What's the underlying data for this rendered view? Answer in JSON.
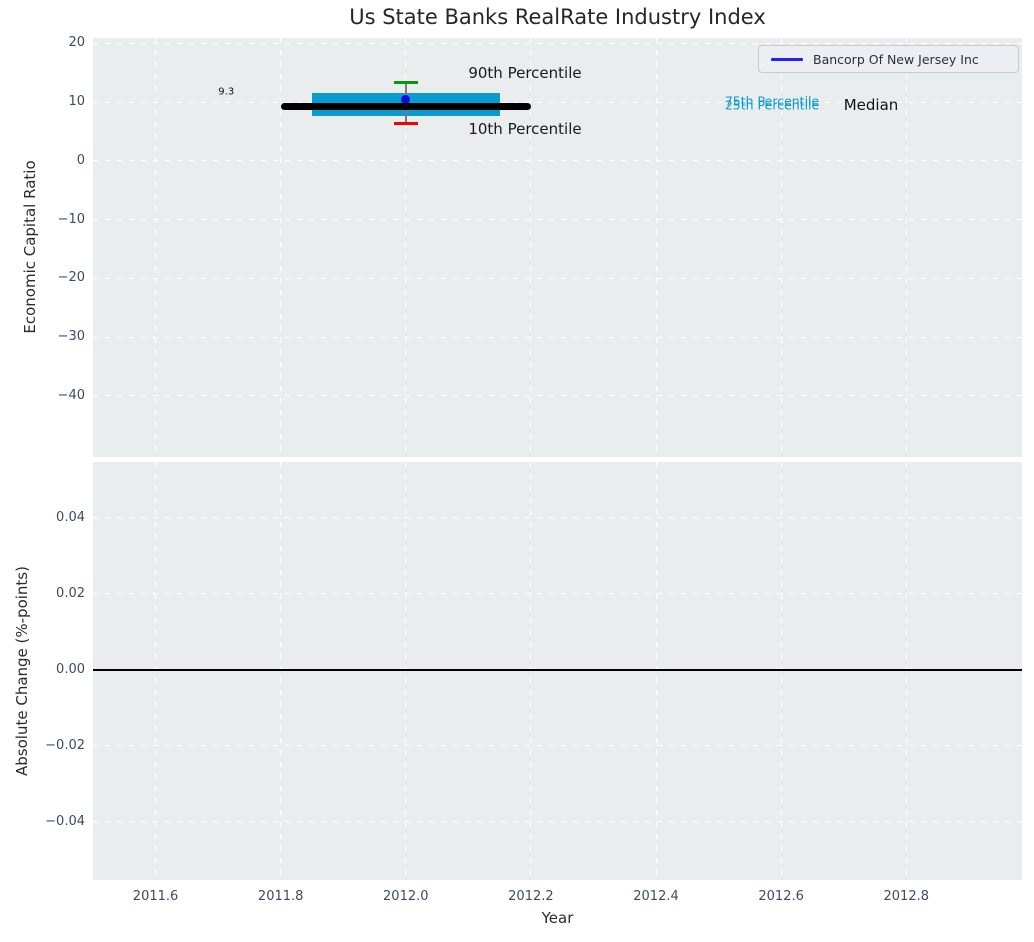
{
  "figure": {
    "title": "Us State Banks RealRate Industry Index",
    "colors": {
      "background": "#ffffff",
      "axes_background": "#eaedee",
      "grid": "#ffffff",
      "tick_label": "#3b4c63",
      "axis_label": "#2b2b2b",
      "title": "#262626"
    }
  },
  "legend": {
    "label": "Bancorp Of New Jersey Inc",
    "line_color": "#2222ee"
  },
  "chart_data": [
    {
      "panel": "top",
      "type": "scatter",
      "title": "Us State Banks RealRate Industry Index",
      "ylabel": "Economic Capital Ratio",
      "xlim": [
        2011.5,
        2012.985
      ],
      "ylim": [
        -50.4,
        20.9
      ],
      "grid": "white-dashed",
      "legend_position": "upper right",
      "yticks": [
        {
          "label": "20",
          "value": 20
        },
        {
          "label": "10",
          "value": 10
        },
        {
          "label": "0",
          "value": 0
        },
        {
          "label": "−10",
          "value": -10
        },
        {
          "label": "−20",
          "value": -20
        },
        {
          "label": "−30",
          "value": -30
        },
        {
          "label": "−40",
          "value": -40
        }
      ],
      "xtick_values": [
        2011.6,
        2011.8,
        2012.0,
        2012.2,
        2012.4,
        2012.6,
        2012.8
      ],
      "series": {
        "company_point": {
          "name": "Bancorp Of New Jersey Inc",
          "x": 2012.0,
          "value": 10.4,
          "color": "#0b0bdc",
          "marker": "circle"
        },
        "median_line": {
          "label": "Median",
          "value": 9.3,
          "value_label": "9.3",
          "x_start": 2011.8,
          "x_end": 2012.2,
          "color": "#000000"
        },
        "percentile_band": {
          "p75": 11.6,
          "p25": 7.6,
          "x_start": 2011.85,
          "x_end": 2012.15,
          "color": "#0a9bce"
        },
        "whisker": {
          "x": 2012.0,
          "p90": 13.3,
          "p10": 6.3,
          "line_color": "#7a7a7a",
          "p90_cap_color": "#0a940a",
          "p10_cap_color": "#f40000"
        }
      },
      "annotations": [
        {
          "text": "90th Percentile",
          "x": 2012.1,
          "y": 15.0,
          "color": "#1a1a1a",
          "size": 15,
          "align": "left"
        },
        {
          "text": "10th Percentile",
          "x": 2012.1,
          "y": 5.4,
          "color": "#1a1a1a",
          "size": 15,
          "align": "left"
        },
        {
          "text": "75th Percentile",
          "x": 2012.51,
          "y": 10.1,
          "color": "#0a9bce",
          "size": 12.5,
          "align": "left"
        },
        {
          "text": "25th Percentile",
          "x": 2012.51,
          "y": 9.5,
          "color": "#0a9bce",
          "size": 12.5,
          "align": "left"
        },
        {
          "text": "Median",
          "x": 2012.7,
          "y": 9.5,
          "color": "#111111",
          "size": 15,
          "align": "left"
        },
        {
          "text": "9.3",
          "x": 2011.713,
          "y": 11.7,
          "color": "#111111",
          "size": 10,
          "align": "center"
        }
      ]
    },
    {
      "panel": "bottom",
      "type": "line",
      "ylabel": "Absolute Change (%-points)",
      "xlabel": "Year",
      "xlim": [
        2011.5,
        2012.985
      ],
      "ylim": [
        -0.0553,
        0.0547
      ],
      "grid": "white-dashed",
      "yticks": [
        {
          "label": "0.04",
          "value": 0.04
        },
        {
          "label": "0.02",
          "value": 0.02
        },
        {
          "label": "0.00",
          "value": 0
        },
        {
          "label": "−0.02",
          "value": -0.02
        },
        {
          "label": "−0.04",
          "value": -0.04
        }
      ],
      "xticks": [
        {
          "label": "2011.6",
          "value": 2011.6
        },
        {
          "label": "2011.8",
          "value": 2011.8
        },
        {
          "label": "2012.0",
          "value": 2012.0
        },
        {
          "label": "2012.2",
          "value": 2012.2
        },
        {
          "label": "2012.4",
          "value": 2012.4
        },
        {
          "label": "2012.6",
          "value": 2012.6
        },
        {
          "label": "2012.8",
          "value": 2012.8
        }
      ],
      "zero_line": {
        "value": 0.0,
        "color": "#000000"
      }
    }
  ]
}
